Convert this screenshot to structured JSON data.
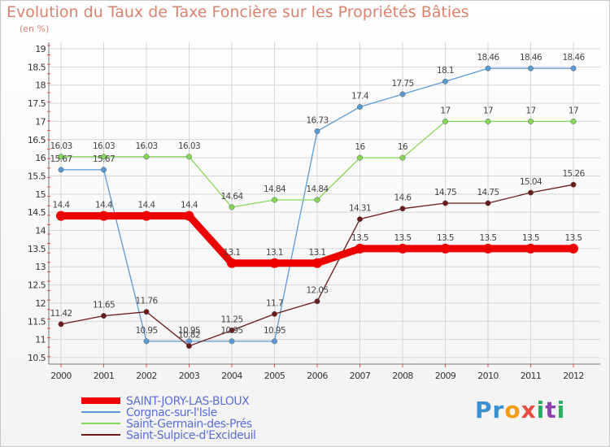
{
  "chart_data": {
    "type": "line",
    "title": "Evolution du Taux de Taxe Foncière sur les Propriétés Bâties",
    "unit_label": "(en %)",
    "categories": [
      "2000",
      "2001",
      "2002",
      "2003",
      "2004",
      "2005",
      "2006",
      "2007",
      "2008",
      "2009",
      "2010",
      "2011",
      "2012"
    ],
    "ylim": [
      10.5,
      19
    ],
    "yticks": [
      "10.5",
      "11",
      "11.5",
      "12",
      "12.5",
      "13",
      "13.5",
      "14",
      "14.5",
      "15",
      "15.5",
      "16",
      "16.5",
      "17",
      "17.5",
      "18",
      "18.5",
      "19"
    ],
    "grid": true,
    "series": [
      {
        "name": "SAINT-JORY-LAS-BLOUX",
        "color": "#ee0000",
        "values": [
          14.4,
          14.4,
          14.4,
          14.4,
          13.1,
          13.1,
          13.1,
          13.5,
          13.5,
          13.5,
          13.5,
          13.5,
          13.5
        ],
        "labels": [
          "14.4",
          "14.4",
          "14.4",
          "14.4",
          "13.1",
          "13.1",
          "13.1",
          "13.5",
          "13.5",
          "13.5",
          "13.5",
          "13.5",
          "13.5"
        ]
      },
      {
        "name": "Corgnac-sur-l'Isle",
        "color": "#5b9bd5",
        "values": [
          15.67,
          15.67,
          10.95,
          10.95,
          10.95,
          10.95,
          16.73,
          17.4,
          17.75,
          18.1,
          18.46,
          18.46,
          18.46
        ],
        "labels": [
          "15.67",
          "15.67",
          "10.95",
          "10.95",
          "10.95",
          "10.95",
          "16.73",
          "17.4",
          "17.75",
          "18.1",
          "18.46",
          "18.46",
          "18.46"
        ]
      },
      {
        "name": "Saint-Germain-des-Prés",
        "color": "#86d957",
        "values": [
          16.03,
          16.03,
          16.03,
          16.03,
          14.64,
          14.84,
          14.84,
          16,
          16,
          17,
          17,
          17,
          17
        ],
        "labels": [
          "16.03",
          "16.03",
          "16.03",
          "16.03",
          "14.64",
          "14.84",
          "14.84",
          "16",
          "16",
          "17",
          "17",
          "17",
          "17"
        ]
      },
      {
        "name": "Saint-Sulpice-d'Excideuil",
        "color": "#6b1a1a",
        "values": [
          11.42,
          11.65,
          11.76,
          10.82,
          11.25,
          11.7,
          12.05,
          14.31,
          14.6,
          14.75,
          14.75,
          15.04,
          15.26
        ],
        "labels": [
          "11.42",
          "11.65",
          "11.76",
          "10.82",
          "11.25",
          "11.7",
          "12.05",
          "14.31",
          "14.6",
          "14.75",
          "14.75",
          "15.04",
          "15.26"
        ]
      }
    ]
  },
  "logo": {
    "text": "Proxiti",
    "letters": [
      "P",
      "r",
      "o",
      "x",
      "i",
      "t",
      "i"
    ],
    "colors": [
      "#3a8fd1",
      "#3a8fd1",
      "#f39c12",
      "#e74c3c",
      "#27ae60",
      "#8e44ad",
      "#27ae60"
    ]
  }
}
